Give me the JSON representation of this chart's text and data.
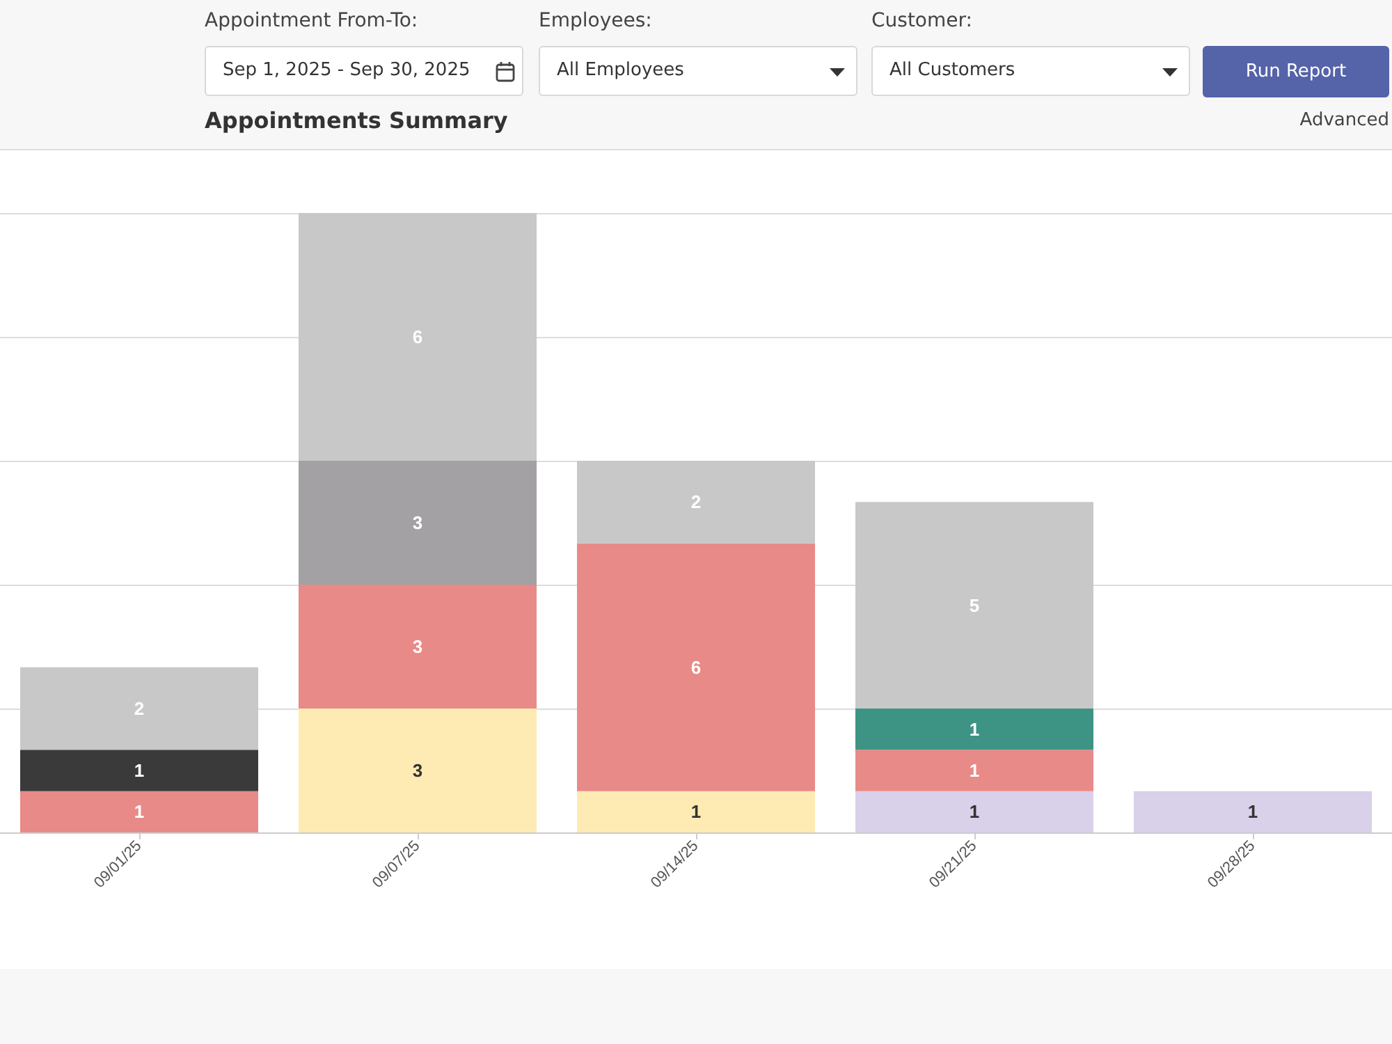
{
  "chart_data": {
    "type": "bar",
    "title": "Appointments Summary",
    "annotations": [
      "Appointment From-To:",
      "Sep 1, 2025 - Sep 30, 2025",
      "Employees:",
      "All Employees",
      "Customer:",
      "All Customers",
      "Run Report",
      "Advanced"
    ],
    "categories": [
      "09/01/25",
      "09/07/25",
      "09/14/25",
      "09/21/25",
      "09/28/25"
    ],
    "stacked": true,
    "data_labels": true,
    "grid": "y",
    "tick_labels": "x",
    "series": [
      {
        "color": "#d9d0ea",
        "values": [
          null,
          null,
          null,
          1,
          1
        ]
      },
      {
        "color": "#feebb3",
        "values": [
          null,
          3,
          1,
          null,
          null
        ]
      },
      {
        "color": "#e88a87",
        "values": [
          1,
          3,
          6,
          1,
          null
        ]
      },
      {
        "color": "#3e9484",
        "values": [
          null,
          null,
          null,
          1,
          null
        ]
      },
      {
        "color": "#3a3a3a",
        "values": [
          1,
          null,
          null,
          null,
          null
        ]
      },
      {
        "color": "#a3a1a3",
        "values": [
          null,
          3,
          null,
          null,
          null
        ]
      },
      {
        "color": "#c8c8c8",
        "values": [
          2,
          6,
          2,
          5,
          null
        ]
      }
    ]
  }
}
